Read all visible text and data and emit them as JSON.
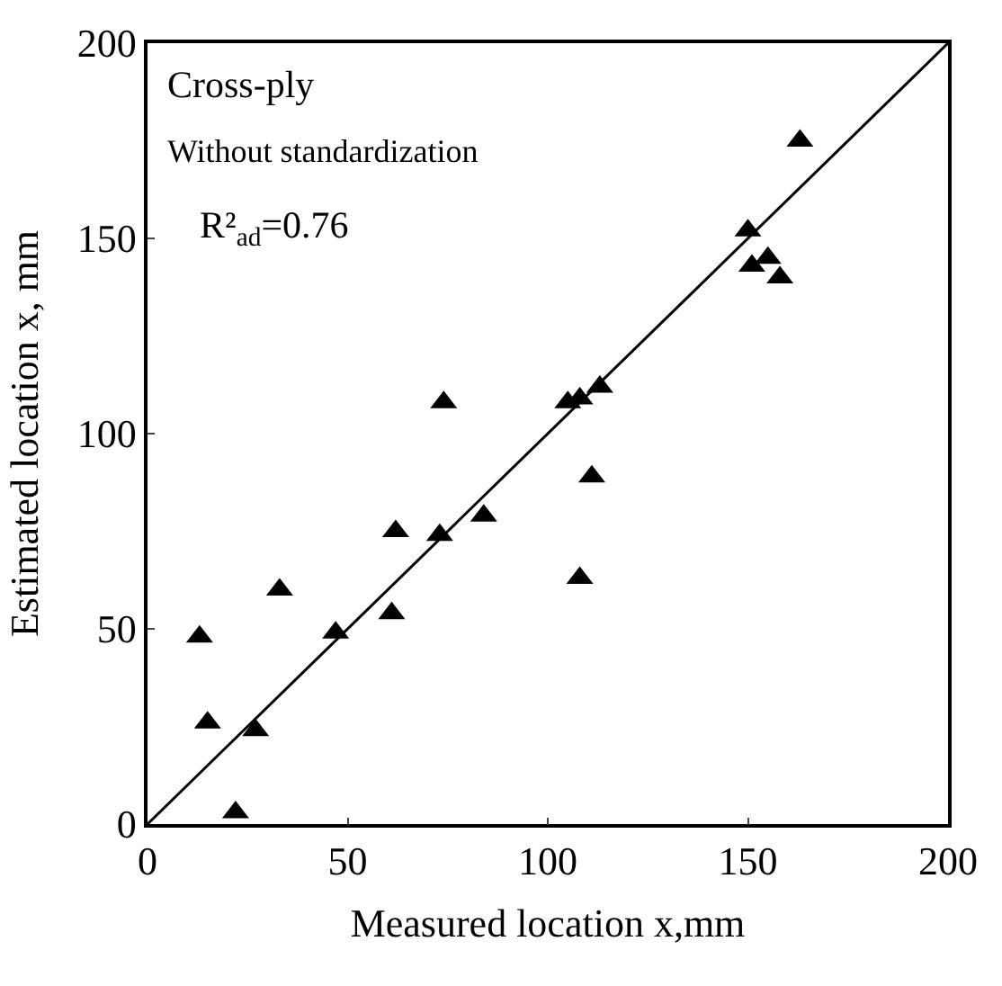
{
  "chart_data": {
    "type": "scatter",
    "xlabel": "Measured location x,mm",
    "ylabel": "Estimated location x, mm",
    "annotations": [
      "Cross-ply",
      "Without standardization",
      "R²$_{ad}$=0.76"
    ],
    "xlim": [
      0,
      200
    ],
    "ylim": [
      0,
      200
    ],
    "xticks": [
      0,
      50,
      100,
      150,
      200
    ],
    "yticks": [
      0,
      50,
      100,
      150,
      200
    ],
    "marker": "triangle",
    "series": [
      {
        "color": "#000000",
        "x": [
          13,
          15,
          27,
          22,
          33,
          47,
          61,
          62,
          73,
          74,
          84,
          105,
          108,
          108,
          111,
          113,
          150,
          151,
          155,
          158,
          163
        ],
        "values": [
          48,
          26,
          24,
          3,
          60,
          49,
          54,
          75,
          74,
          108,
          79,
          108,
          109,
          63,
          89,
          112,
          152,
          143,
          145,
          140,
          175
        ]
      },
      {
        "type": "line",
        "color": "#000000",
        "x": [
          0,
          200
        ],
        "values": [
          0,
          200
        ],
        "marker": "none",
        "line_style": "solid"
      }
    ]
  }
}
